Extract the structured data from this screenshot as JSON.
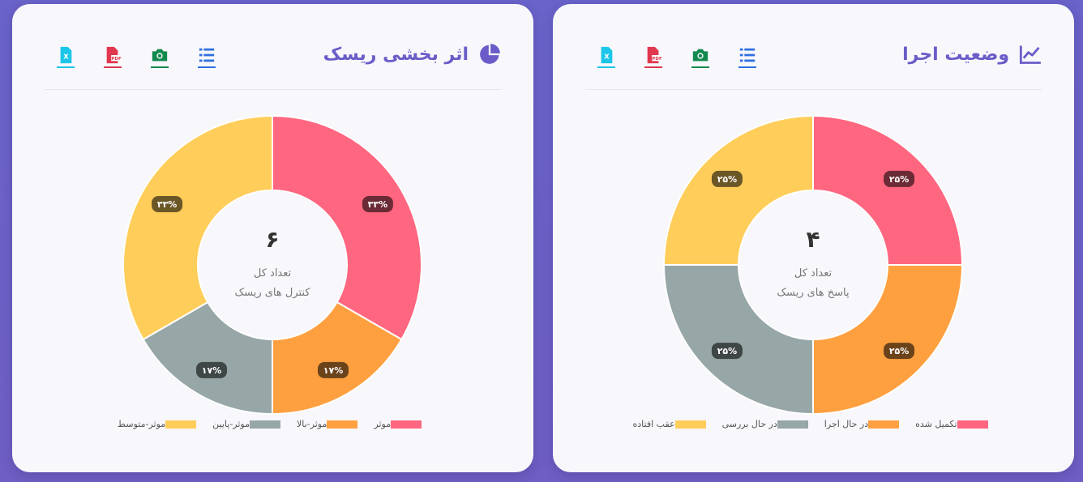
{
  "cards": [
    {
      "title": "اثر بخشی ریسک",
      "title_icon": "pie-chart-icon",
      "tools": [
        {
          "icon": "excel-icon",
          "color": "#1cc6e8"
        },
        {
          "icon": "pdf-icon",
          "color": "#e0384e"
        },
        {
          "icon": "camera-icon",
          "color": "#128a4e"
        },
        {
          "icon": "list-icon",
          "color": "#2f6fe0"
        }
      ],
      "center_value": "۶",
      "center_line1": "تعداد کل",
      "center_line2": "کنترل های ریسک"
    },
    {
      "title": "وضعیت اجرا",
      "title_icon": "line-chart-icon",
      "tools": [
        {
          "icon": "excel-icon",
          "color": "#1cc6e8"
        },
        {
          "icon": "pdf-icon",
          "color": "#e0384e"
        },
        {
          "icon": "camera-icon",
          "color": "#128a4e"
        },
        {
          "icon": "list-icon",
          "color": "#2f6fe0"
        }
      ],
      "center_value": "۴",
      "center_line1": "تعداد کل",
      "center_line2": "پاسخ های ریسک"
    }
  ],
  "chart_data": [
    {
      "type": "pie",
      "title": "اثر بخشی ریسک",
      "categories": [
        "موثر",
        "موثر-بالا",
        "موثر-پایین",
        "موثر-متوسط"
      ],
      "values": [
        2,
        1,
        1,
        2
      ],
      "labels": [
        "۳۳%",
        "۱۷%",
        "۱۷%",
        "۳۳%"
      ],
      "colors": [
        "#ff6680",
        "#ffa040",
        "#97a6a6",
        "#ffcd5a"
      ],
      "legend_position": "bottom"
    },
    {
      "type": "pie",
      "title": "وضعیت اجرا",
      "categories": [
        "تکمیل شده",
        "در حال اجرا",
        "در حال بررسی",
        "عقب افتاده"
      ],
      "values": [
        1,
        1,
        1,
        1
      ],
      "labels": [
        "۲۵%",
        "۲۵%",
        "۲۵%",
        "۲۵%"
      ],
      "colors": [
        "#ff6680",
        "#ffa040",
        "#97a6a6",
        "#ffcd5a"
      ],
      "legend_position": "bottom"
    }
  ]
}
